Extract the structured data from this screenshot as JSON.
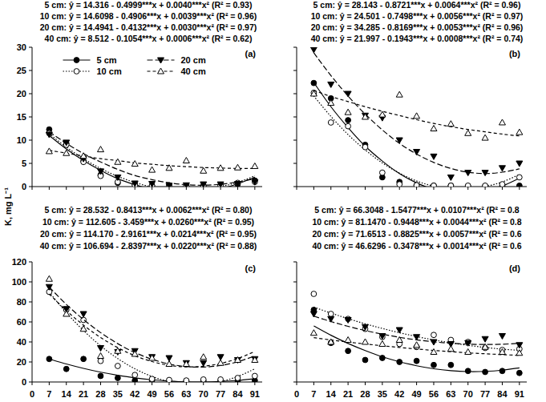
{
  "chart_data": [
    {
      "type": "scatter",
      "title": "(a)",
      "ylabel": "K, mg L⁻¹",
      "legend": "upper center",
      "tick_labels": "y",
      "annotations": [
        "5 cm: ŷ = 14.316 - 0.4999***x + 0.0040***x² (R² = 0.93)",
        "10 cm: ŷ = 14.6098 - 0.4906***x + 0.0039***x² (R² = 0.96)",
        "20 cm: ŷ = 14.4941 - 0.4132***x + 0.0030***x² (R² = 0.97)",
        "40 cm: ŷ = 8.512 - 0.1054***x + 0.0006***x²     (R² = 0.62)"
      ],
      "x": [
        7,
        14,
        21,
        28,
        35,
        42,
        49,
        56,
        63,
        70,
        77,
        84,
        91
      ],
      "xlim": [
        0,
        94
      ],
      "xticks": [
        0,
        7,
        14,
        21,
        28,
        35,
        42,
        49,
        56,
        63,
        70,
        77,
        84,
        91
      ],
      "ylim": [
        0,
        30
      ],
      "yticks": [
        0,
        5,
        10,
        15,
        20,
        25,
        30
      ],
      "series": [
        {
          "name": "5 cm",
          "color": "#000000",
          "marker": "circle",
          "line_style": "solid",
          "values": [
            12.3,
            9.3,
            5.5,
            2.5,
            0.8,
            0.4,
            0.2,
            0.1,
            0.1,
            0.1,
            0.2,
            0.5,
            1.3
          ],
          "fit": [
            11.0,
            8.1,
            5.6,
            3.5,
            1.7,
            0.4,
            -0.6,
            -1.1,
            -1.3,
            -1.1,
            -0.5,
            0.6,
            2.0
          ]
        },
        {
          "name": "10 cm",
          "color": "#000000",
          "marker": "open-circle",
          "line_style": "dotted",
          "values": [
            11.5,
            9.0,
            5.3,
            2.3,
            1.0,
            0.3,
            0.2,
            0.3,
            0.1,
            0.2,
            0.3,
            0.8,
            1.0
          ],
          "fit": [
            11.4,
            8.5,
            6.0,
            3.9,
            2.2,
            0.9,
            -0.1,
            -0.6,
            -0.8,
            -0.6,
            0.0,
            0.9,
            2.3
          ]
        },
        {
          "name": "20 cm",
          "color": "#000000",
          "marker": "triangle-down",
          "line_style": "longdash",
          "values": [
            11.2,
            9.5,
            6.0,
            3.3,
            2.0,
            0.7,
            0.6,
            0.2,
            0.3,
            0.5,
            0.5,
            0.6,
            1.0
          ],
          "fit": [
            11.8,
            9.3,
            7.1,
            5.3,
            3.7,
            2.4,
            1.5,
            0.8,
            0.4,
            0.3,
            0.5,
            1.0,
            1.7
          ]
        },
        {
          "name": "40 cm",
          "color": "#000000",
          "marker": "open-triangle",
          "line_style": "dashed",
          "values": [
            7.6,
            7.2,
            6.6,
            8.0,
            5.3,
            4.9,
            3.6,
            4.0,
            5.6,
            3.4,
            4.0,
            4.1,
            4.4
          ],
          "fit": [
            7.8,
            7.2,
            6.6,
            6.0,
            5.6,
            5.1,
            4.8,
            4.5,
            4.3,
            4.1,
            4.0,
            3.9,
            3.9
          ]
        }
      ]
    },
    {
      "type": "scatter",
      "title": "(b)",
      "tick_labels": false,
      "annotations": [
        "5 cm: ŷ = 28.143 - 0.8721***x + 0.0064***x² (R² = 0.96)",
        "10 cm: ŷ = 24.501 - 0.7498***x + 0.0056***x² (R² = 0.97)",
        "20 cm: ŷ = 34.285 - 0.8169***x + 0.0053***x² (R² = 0.96)",
        "40 cm: ŷ = 21.997 - 0.1943***x + 0.0008***x² (R² = 0.74)"
      ],
      "x": [
        7,
        14,
        21,
        28,
        35,
        42,
        49,
        56,
        63,
        70,
        77,
        84,
        91
      ],
      "xlim": [
        0,
        94
      ],
      "xticks": [
        0,
        7,
        14,
        21,
        28,
        35,
        42,
        49,
        56,
        63,
        70,
        77,
        84,
        91
      ],
      "ylim": [
        0,
        30
      ],
      "yticks": [
        0,
        5,
        10,
        15,
        20,
        25,
        30
      ],
      "series": [
        {
          "color": "#000000",
          "marker": "circle",
          "line_style": "solid",
          "values": [
            22.3,
            19.0,
            14.3,
            9.0,
            2.0,
            1.0,
            0.3,
            0.2,
            0.2,
            0.1,
            0.1,
            0.1,
            0.2
          ],
          "fit": [
            22.4,
            17.2,
            12.7,
            8.7,
            5.5,
            2.8,
            0.8,
            -0.6,
            -1.4,
            -1.5,
            -1.1,
            0.1,
            1.8
          ]
        },
        {
          "color": "#000000",
          "marker": "open-circle",
          "line_style": "dotted",
          "values": [
            20.2,
            13.8,
            13.0,
            8.5,
            3.0,
            0.5,
            0.3,
            0.2,
            0.2,
            0.2,
            0.2,
            0.5,
            2.0
          ],
          "fit": [
            19.5,
            15.1,
            11.2,
            7.9,
            5.1,
            2.9,
            1.2,
            0.1,
            -0.5,
            -0.6,
            0.0,
            1.0,
            2.6
          ]
        },
        {
          "color": "#000000",
          "marker": "triangle-down",
          "line_style": "longdash",
          "values": [
            29.5,
            22.0,
            20.0,
            15.3,
            14.8,
            10.0,
            7.5,
            6.5,
            2.0,
            3.0,
            3.0,
            4.0,
            5.0
          ],
          "fit": [
            28.8,
            23.9,
            19.5,
            15.6,
            12.2,
            9.3,
            7.0,
            5.2,
            3.9,
            3.1,
            2.8,
            3.1,
            3.8
          ]
        },
        {
          "color": "#000000",
          "marker": "open-triangle",
          "line_style": "dashed",
          "values": [
            20.0,
            18.0,
            16.0,
            15.0,
            15.5,
            19.8,
            15.2,
            12.5,
            13.5,
            11.5,
            10.5,
            13.8,
            11.7
          ],
          "fit": [
            20.7,
            19.4,
            18.3,
            17.2,
            16.2,
            15.3,
            14.4,
            13.6,
            12.9,
            12.3,
            11.8,
            11.3,
            10.9
          ]
        }
      ]
    },
    {
      "type": "scatter",
      "title": "(c)",
      "tick_labels": true,
      "annotations": [
        "5 cm: ŷ = 28.532 - 0.8413***x + 0.0062***x²  (R² = 0.80)",
        "10 cm: ŷ = 112.605 - 3.459***x + 0.0260***x²  (R² = 0.95)",
        "20 cm: ŷ = 114.170 - 2.9161***x + 0.0214***x² (R² = 0.95)",
        "40 cm: ŷ = 106.694 - 2.8397***x + 0.0220***x²  (R² = 0.88)"
      ],
      "x": [
        7,
        14,
        21,
        28,
        35,
        42,
        49,
        56,
        63,
        70,
        77,
        84,
        91
      ],
      "xlim": [
        0,
        94
      ],
      "xticks": [
        0,
        7,
        14,
        21,
        28,
        35,
        42,
        49,
        56,
        63,
        70,
        77,
        84,
        91
      ],
      "ylim": [
        0,
        120
      ],
      "yticks": [
        0,
        20,
        40,
        60,
        80,
        100,
        120
      ],
      "series": [
        {
          "color": "#000000",
          "marker": "circle",
          "line_style": "solid",
          "values": [
            23,
            13,
            23,
            6,
            4,
            1.5,
            1.5,
            1,
            1,
            1,
            1,
            1,
            1.5
          ],
          "fit": [
            23.0,
            18.0,
            13.6,
            9.8,
            6.7,
            4.1,
            2.2,
            0.9,
            0.1,
            0.0,
            0.5,
            1.6,
            3.3
          ]
        },
        {
          "color": "#000000",
          "marker": "open-circle",
          "line_style": "dotted",
          "values": [
            90,
            72,
            62,
            21,
            16,
            7,
            3,
            2,
            1.5,
            2.5,
            2.5,
            4,
            6
          ],
          "fit": [
            89.7,
            69.3,
            51.4,
            36.1,
            23.4,
            13.2,
            5.5,
            0.4,
            -2.1,
            -2.1,
            0.4,
            5.5,
            13.1
          ]
        },
        {
          "color": "#000000",
          "marker": "triangle-down",
          "line_style": "longdash",
          "values": [
            95,
            73,
            68,
            34,
            30,
            31,
            25,
            24,
            19,
            19,
            25,
            22,
            23
          ],
          "fit": [
            94.8,
            77.5,
            62.4,
            49.3,
            38.3,
            29.4,
            22.7,
            18.0,
            15.4,
            14.9,
            16.5,
            20.2,
            26.0
          ]
        },
        {
          "color": "#000000",
          "marker": "open-triangle",
          "line_style": "dashed",
          "values": [
            103,
            68,
            53,
            26,
            31,
            28,
            24,
            18,
            18,
            25,
            19,
            22,
            22
          ],
          "fit": [
            87.9,
            71.3,
            56.8,
            44.4,
            34.3,
            26.2,
            20.4,
            16.7,
            15.1,
            15.7,
            18.5,
            23.4,
            30.5
          ]
        }
      ]
    },
    {
      "type": "scatter",
      "title": "(d)",
      "tick_labels": "x",
      "annotations": [
        "5 cm: ŷ = 66.3048 - 1.5477***x + 0.0107***x² (R² = 0.8",
        "10 cm: ŷ = 81.1470 - 0.9448***x + 0.0044***x² (R² = 0.8",
        "20 cm: ŷ = 71.6513 - 0.8825***x + 0.0057***x² (R² = 0.6",
        "40 cm: ŷ = 46.6296 - 0.3478***x + 0.0014***x² (R² = 0.6"
      ],
      "x": [
        7,
        14,
        21,
        28,
        35,
        42,
        49,
        56,
        63,
        70,
        77,
        84,
        91
      ],
      "xlim": [
        0,
        94
      ],
      "xticks": [
        0,
        7,
        14,
        21,
        28,
        35,
        42,
        49,
        56,
        63,
        70,
        77,
        84,
        91
      ],
      "ylim": [
        0,
        120
      ],
      "yticks": [
        0,
        20,
        40,
        60,
        80,
        100,
        120
      ],
      "series": [
        {
          "color": "#000000",
          "marker": "circle",
          "line_style": "solid",
          "values": [
            72,
            39,
            31,
            22,
            24,
            20,
            21,
            17,
            17,
            11,
            10,
            11,
            9
          ],
          "fit": [
            56.0,
            46.7,
            38.5,
            31.4,
            25.2,
            20.2,
            16.2,
            13.2,
            11.3,
            10.4,
            10.6,
            11.8,
            14.1
          ]
        },
        {
          "color": "#000000",
          "marker": "open-circle",
          "line_style": "dotted",
          "values": [
            88,
            68,
            63,
            53,
            45,
            38,
            35,
            47,
            42,
            40,
            34,
            32,
            33
          ],
          "fit": [
            74.8,
            68.8,
            63.3,
            58.1,
            53.5,
            49.2,
            45.4,
            42.0,
            39.1,
            36.6,
            34.5,
            32.8,
            31.6
          ]
        },
        {
          "color": "#000000",
          "marker": "triangle-down",
          "line_style": "longdash",
          "values": [
            68,
            63,
            62,
            55,
            46,
            52,
            45,
            40,
            38,
            39,
            43,
            46,
            37
          ],
          "fit": [
            65.8,
            60.4,
            55.6,
            51.4,
            47.8,
            44.6,
            42.1,
            40.1,
            38.7,
            37.8,
            37.5,
            37.7,
            38.6
          ]
        },
        {
          "color": "#000000",
          "marker": "open-triangle",
          "line_style": "dashed",
          "values": [
            49,
            40,
            42,
            40,
            38,
            42,
            37,
            30,
            33,
            30,
            35,
            30,
            29
          ],
          "fit": [
            44.3,
            42.0,
            39.9,
            38.0,
            36.2,
            34.5,
            33.0,
            31.5,
            30.3,
            29.1,
            28.2,
            27.3,
            26.6
          ]
        }
      ]
    }
  ]
}
